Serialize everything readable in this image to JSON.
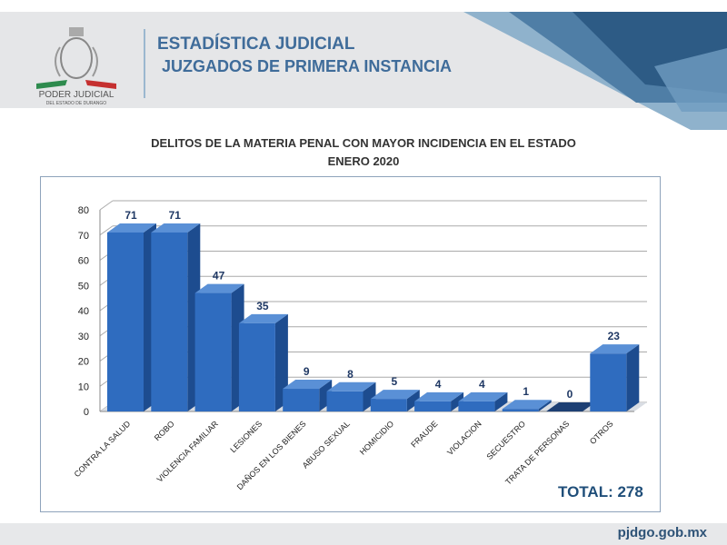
{
  "header": {
    "title": "ESTADÍSTICA JUDICIAL",
    "subtitle": "JUZGADOS DE PRIMERA INSTANCIA",
    "logo_text": "PODER JUDICIAL",
    "logo_subtext": "DEL ESTADO DE DURANGO"
  },
  "footer": {
    "url": "pjdgo.gob.mx"
  },
  "colors": {
    "bar": "#2f6cbf",
    "bar_top": "#5a90d6",
    "bar_side": "#1d4c8f",
    "title": "#3f6c9a"
  },
  "chart_data": {
    "type": "bar",
    "title": "DELITOS DE LA MATERIA PENAL CON MAYOR INCIDENCIA EN EL ESTADO",
    "subtitle": "ENERO 2020",
    "categories": [
      "CONTRA LA SALUD",
      "ROBO",
      "VIOLENCIA FAMILIAR",
      "LESIONES",
      "DAÑOS EN LOS BIENES",
      "ABUSO SEXUAL",
      "HOMICIDIO",
      "FRAUDE",
      "VIOLACION",
      "SECUESTRO",
      "TRATA DE PERSONAS",
      "OTROS"
    ],
    "values": [
      71,
      71,
      47,
      35,
      9,
      8,
      5,
      4,
      4,
      1,
      0,
      23
    ],
    "yticks": [
      0,
      10,
      20,
      30,
      40,
      50,
      60,
      70,
      80
    ],
    "ylim": [
      0,
      80
    ],
    "grid": true,
    "total_label": "TOTAL: 278"
  }
}
